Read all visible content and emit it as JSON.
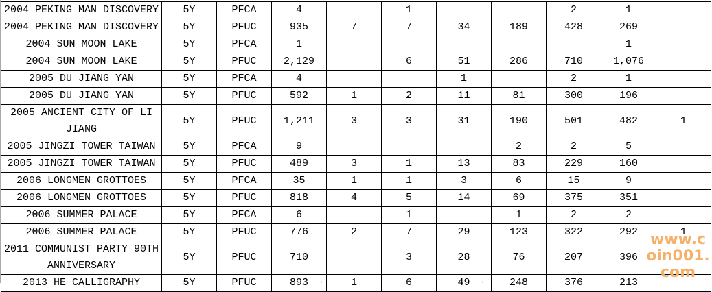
{
  "table": {
    "rows": [
      [
        "2004 PEKING MAN DISCOVERY",
        "5Y",
        "PFCA",
        "4",
        "",
        "1",
        "",
        "",
        "2",
        "1",
        ""
      ],
      [
        "2004 PEKING MAN DISCOVERY",
        "5Y",
        "PFUC",
        "935",
        "7",
        "7",
        "34",
        "189",
        "428",
        "269",
        ""
      ],
      [
        "2004 SUN MOON LAKE",
        "5Y",
        "PFCA",
        "1",
        "",
        "",
        "",
        "",
        "",
        "1",
        ""
      ],
      [
        "2004 SUN MOON LAKE",
        "5Y",
        "PFUC",
        "2,129",
        "",
        "6",
        "51",
        "286",
        "710",
        "1,076",
        ""
      ],
      [
        "2005 DU JIANG YAN",
        "5Y",
        "PFCA",
        "4",
        "",
        "",
        "1",
        "",
        "2",
        "1",
        ""
      ],
      [
        "2005 DU JIANG YAN",
        "5Y",
        "PFUC",
        "592",
        "1",
        "2",
        "11",
        "81",
        "300",
        "196",
        ""
      ],
      [
        "2005 ANCIENT CITY OF LI JIANG",
        "5Y",
        "PFUC",
        "1,211",
        "3",
        "3",
        "31",
        "190",
        "501",
        "482",
        "1"
      ],
      [
        "2005 JINGZI TOWER TAIWAN",
        "5Y",
        "PFCA",
        "9",
        "",
        "",
        "",
        "2",
        "2",
        "5",
        ""
      ],
      [
        "2005 JINGZI TOWER TAIWAN",
        "5Y",
        "PFUC",
        "489",
        "3",
        "1",
        "13",
        "83",
        "229",
        "160",
        ""
      ],
      [
        "2006 LONGMEN GROTTOES",
        "5Y",
        "PFCA",
        "35",
        "1",
        "1",
        "3",
        "6",
        "15",
        "9",
        ""
      ],
      [
        "2006 LONGMEN GROTTOES",
        "5Y",
        "PFUC",
        "818",
        "4",
        "5",
        "14",
        "69",
        "375",
        "351",
        ""
      ],
      [
        "2006 SUMMER PALACE",
        "5Y",
        "PFCA",
        "6",
        "",
        "1",
        "",
        "1",
        "2",
        "2",
        ""
      ],
      [
        "2006 SUMMER PALACE",
        "5Y",
        "PFUC",
        "776",
        "2",
        "7",
        "29",
        "123",
        "322",
        "292",
        "1"
      ],
      [
        "2011 COMMUNIST PARTY 90TH ANNIVERSARY",
        "5Y",
        "PFUC",
        "710",
        "",
        "3",
        "28",
        "76",
        "207",
        "396",
        ""
      ],
      [
        "2013 HE CALLIGRAPHY",
        "5Y",
        "PFUC",
        "893",
        "1",
        "6",
        "49",
        "248",
        "376",
        "213",
        ""
      ]
    ]
  },
  "watermark": {
    "text": "www.coin001.com",
    "color": "#f5b06a"
  }
}
